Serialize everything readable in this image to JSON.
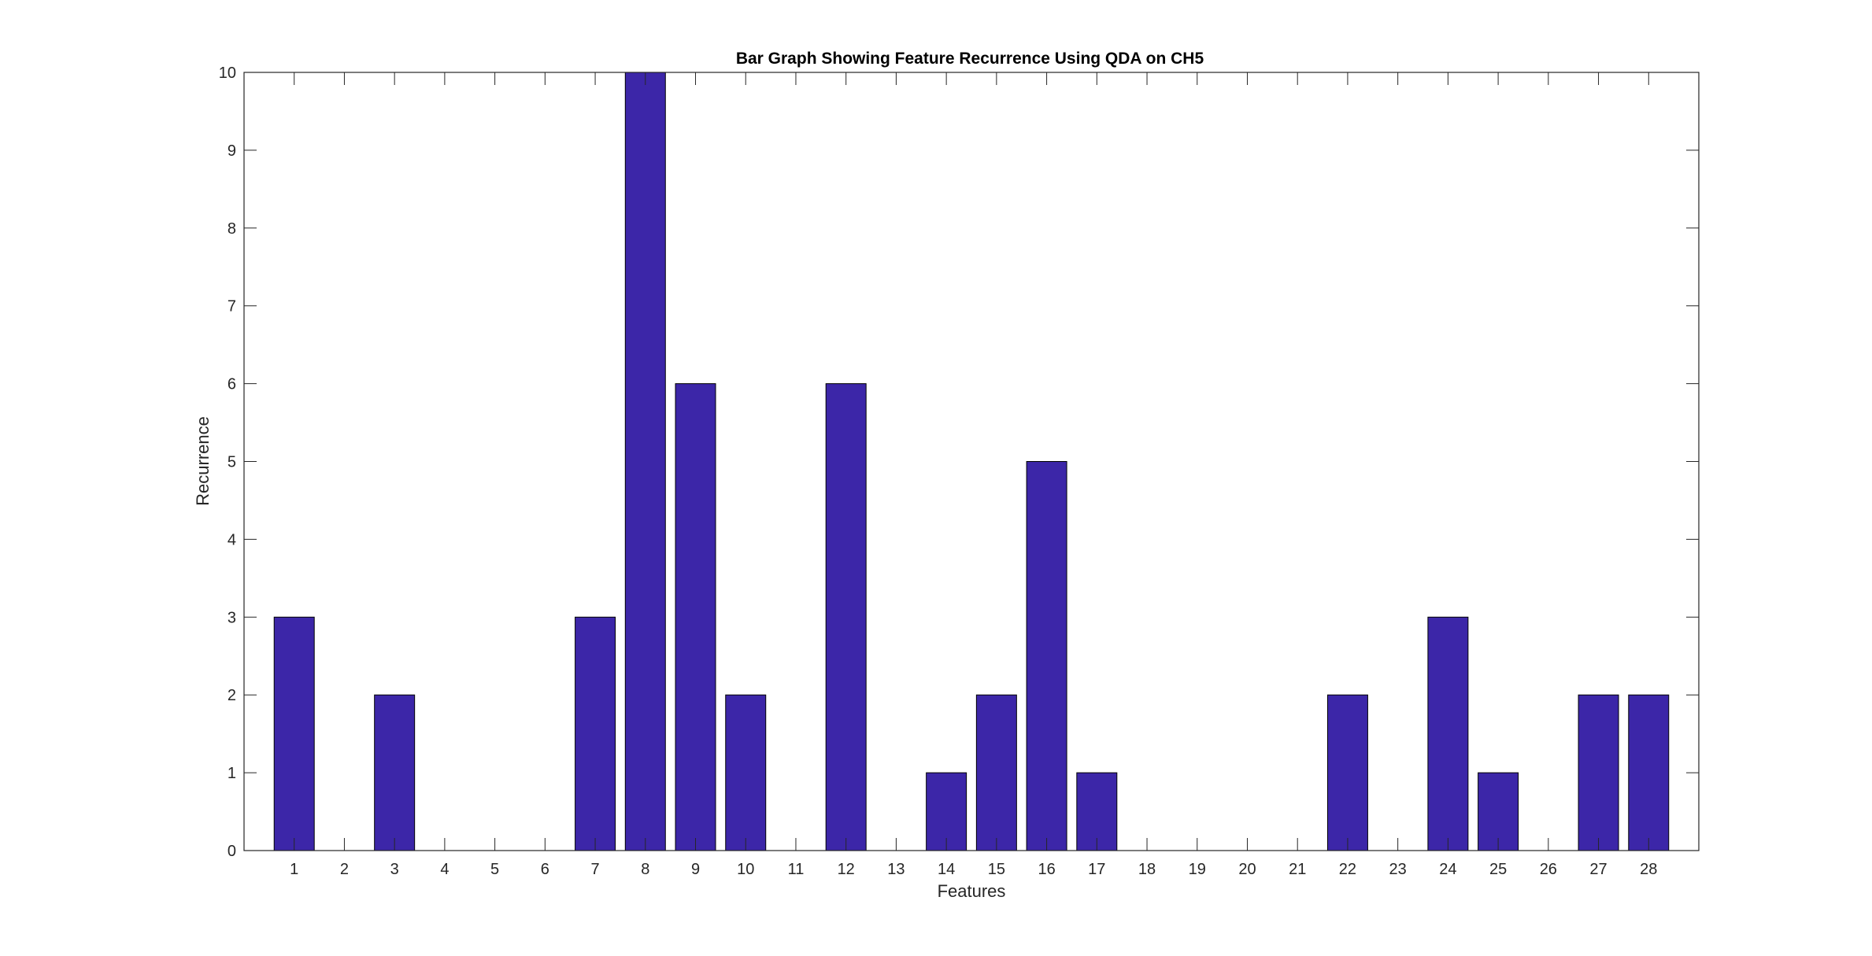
{
  "chart_data": {
    "type": "bar",
    "title": "Bar Graph Showing Feature Recurrence Using QDA on CH5",
    "xlabel": "Features",
    "ylabel": "Recurrence",
    "categories": [
      "1",
      "2",
      "3",
      "4",
      "5",
      "6",
      "7",
      "8",
      "9",
      "10",
      "11",
      "12",
      "13",
      "14",
      "15",
      "16",
      "17",
      "18",
      "19",
      "20",
      "21",
      "22",
      "23",
      "24",
      "25",
      "26",
      "27",
      "28"
    ],
    "values": [
      3,
      0,
      2,
      0,
      0,
      0,
      3,
      10,
      6,
      2,
      0,
      6,
      0,
      1,
      2,
      5,
      1,
      0,
      0,
      0,
      0,
      2,
      0,
      3,
      1,
      0,
      2,
      2
    ],
    "ylim": [
      0,
      10
    ],
    "yticks": [
      "0",
      "1",
      "2",
      "3",
      "4",
      "5",
      "6",
      "7",
      "8",
      "9",
      "10"
    ],
    "grid": false,
    "legend": "none",
    "colors": {
      "bar_fill": "#3c26a8",
      "bar_edge": "#000000",
      "axis": "#262626"
    }
  }
}
